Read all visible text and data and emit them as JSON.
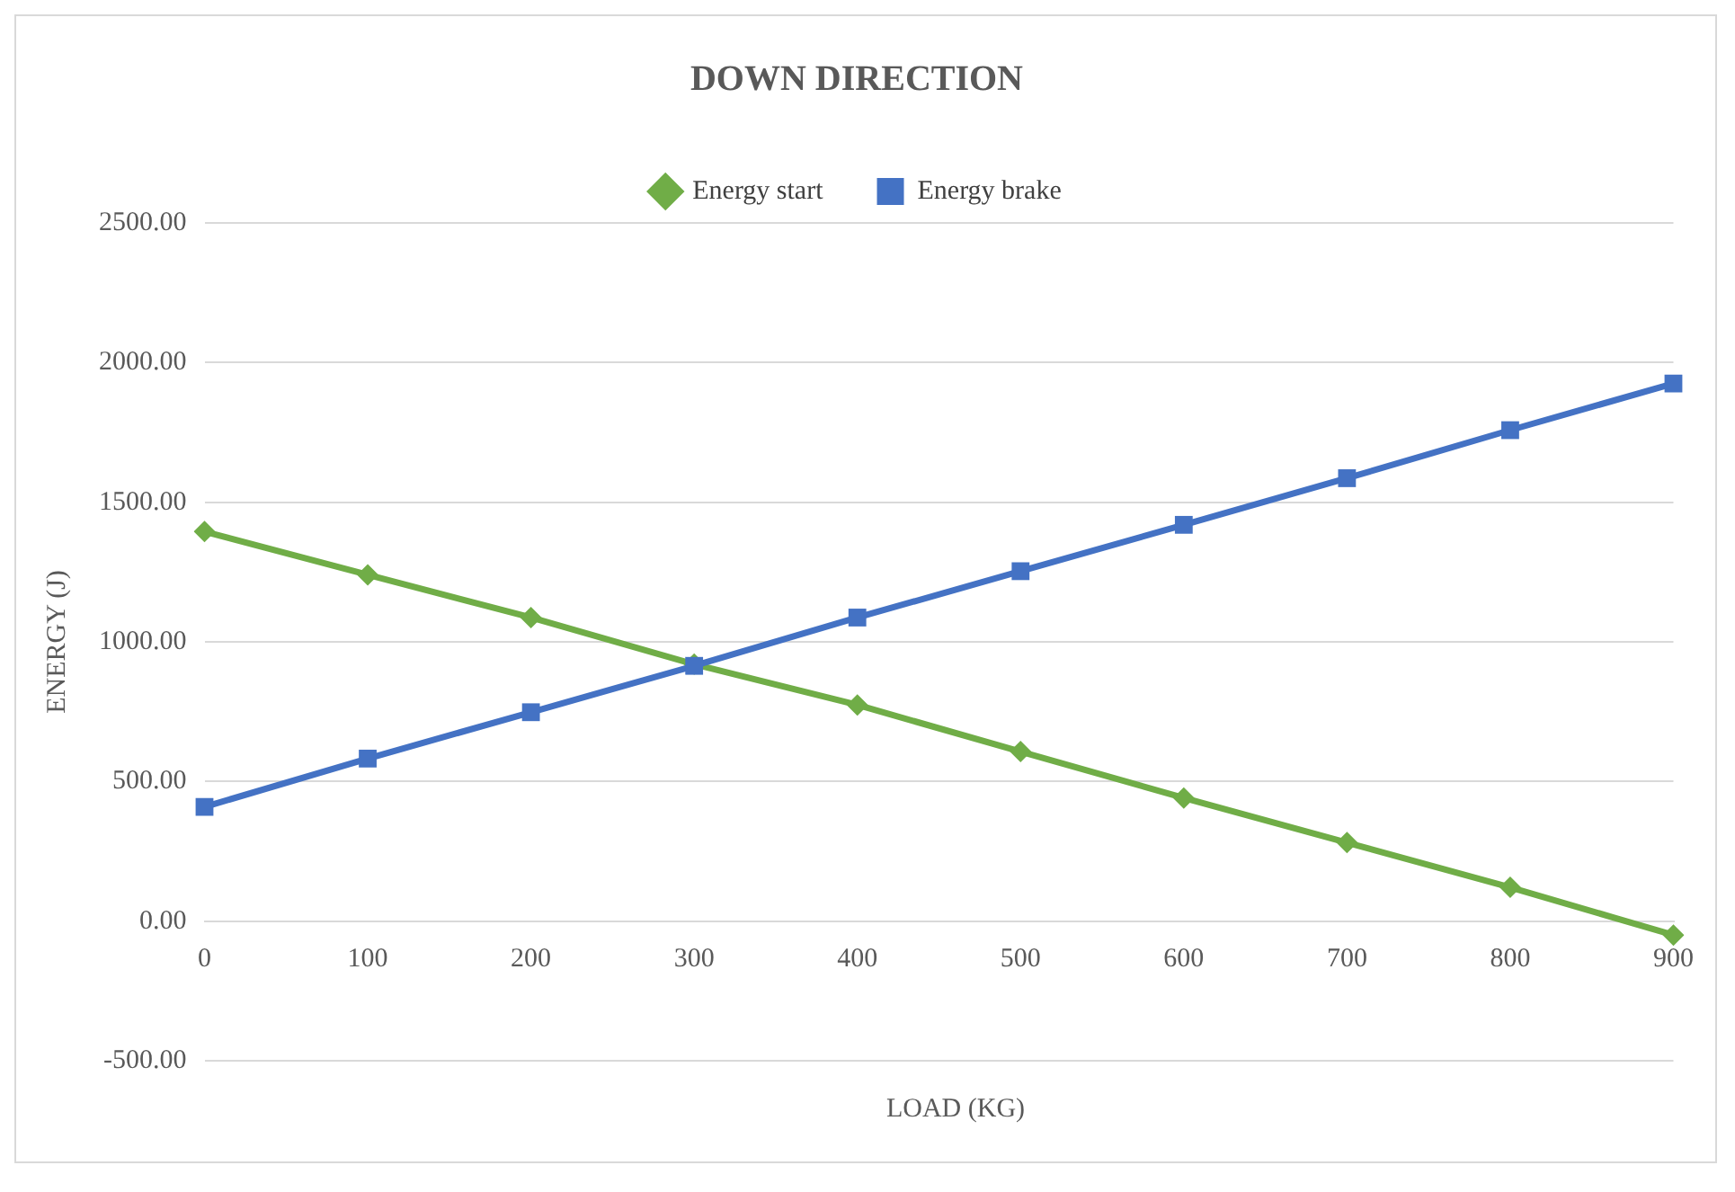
{
  "chart_data": {
    "type": "line",
    "title": "DOWN DIRECTION",
    "xlabel": "LOAD (KG)",
    "ylabel": "ENERGY (J)",
    "categories": [
      "0",
      "100",
      "200",
      "300",
      "400",
      "500",
      "600",
      "700",
      "800",
      "900"
    ],
    "series": [
      {
        "name": "Energy start",
        "color": "#70ad47",
        "marker": "diamond",
        "values": [
          1395,
          1240,
          1087,
          920,
          774,
          607,
          441,
          281,
          121,
          -50
        ]
      },
      {
        "name": "Energy brake",
        "color": "#4472c4",
        "marker": "square",
        "values": [
          409,
          582,
          748,
          914,
          1087,
          1253,
          1419,
          1586,
          1758,
          1925
        ]
      }
    ],
    "ylim": [
      -500,
      2500
    ],
    "yticks": [
      {
        "value": -500,
        "label": "-500.00"
      },
      {
        "value": 0,
        "label": "0.00"
      },
      {
        "value": 500,
        "label": "500.00"
      },
      {
        "value": 1000,
        "label": "1000.00"
      },
      {
        "value": 1500,
        "label": "1500.00"
      },
      {
        "value": 2000,
        "label": "2000.00"
      },
      {
        "value": 2500,
        "label": "2500.00"
      }
    ],
    "grid": "y",
    "legend": "top"
  }
}
